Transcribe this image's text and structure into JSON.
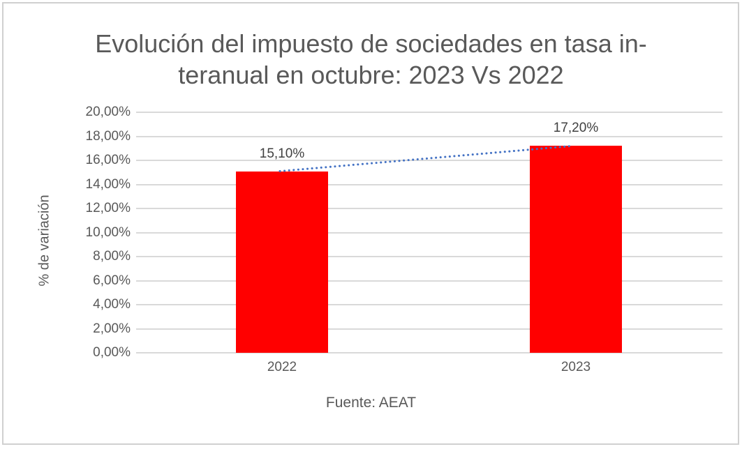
{
  "chart_data": {
    "type": "bar",
    "title": "Evolución del impuesto de sociedades en tasa interanual en octubre: 2023 Vs 2022",
    "title_lines": [
      "Evolución del impuesto de sociedades en tasa in-",
      "teranual en octubre: 2023 Vs 2022"
    ],
    "categories": [
      "2022",
      "2023"
    ],
    "values": [
      15.1,
      17.2
    ],
    "data_labels": [
      "15,10%",
      "17,20%"
    ],
    "xlabel": "Fuente: AEAT",
    "ylabel": "% de variación",
    "ylim": [
      0,
      20
    ],
    "yticks": [
      "0,00%",
      "2,00%",
      "4,00%",
      "6,00%",
      "8,00%",
      "10,00%",
      "12,00%",
      "14,00%",
      "16,00%",
      "18,00%",
      "20,00%"
    ],
    "grid": true,
    "legend": null,
    "trendline": {
      "type": "linear",
      "style": "dotted",
      "color": "#4472c4"
    },
    "colors": {
      "bar": "#ff0000",
      "grid": "#d9d9d9",
      "text": "#595959"
    }
  }
}
